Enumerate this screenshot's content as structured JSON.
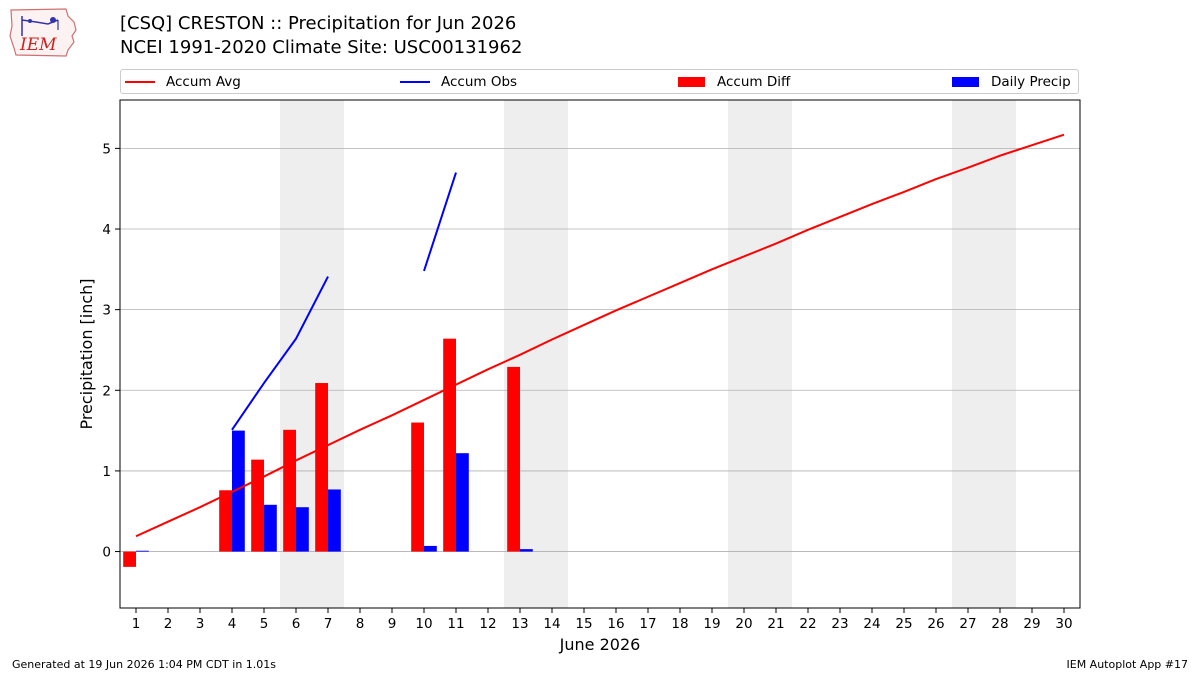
{
  "header": {
    "title_line1": "[CSQ] CRESTON :: Precipitation for Jun 2026",
    "title_line2": "NCEI 1991-2020 Climate Site: USC00131962"
  },
  "logo": {
    "text": "IEM",
    "icon": "iem-iowa-logo"
  },
  "footer": {
    "generated": "Generated at 19 Jun 2026 1:04 PM CDT in 1.01s",
    "app": "IEM Autoplot App #17"
  },
  "colors": {
    "avg": "#ff0000",
    "obs": "#0000ff",
    "diff": "#ff0000",
    "daily": "#0000ff",
    "weekend": "#eeeeee",
    "grid": "#b0b0b0"
  },
  "chart_data": {
    "type": "bar",
    "xlabel": "June 2026",
    "ylabel": "Precipitation [inch]",
    "ylim": [
      -0.7,
      5.6
    ],
    "yticks": [
      0,
      1,
      2,
      3,
      4,
      5
    ],
    "xlim": [
      0.5,
      30.5
    ],
    "grid": "horizontal",
    "legend_position": "top",
    "days": [
      1,
      2,
      3,
      4,
      5,
      6,
      7,
      8,
      9,
      10,
      11,
      12,
      13,
      14,
      15,
      16,
      17,
      18,
      19,
      20,
      21,
      22,
      23,
      24,
      25,
      26,
      27,
      28,
      29,
      30
    ],
    "weekends": [
      [
        6,
        7
      ],
      [
        13,
        14
      ],
      [
        20,
        21
      ],
      [
        27,
        28
      ]
    ],
    "legend": [
      "Accum Avg",
      "Accum Obs",
      "Accum Diff",
      "Daily Precip"
    ],
    "series": [
      {
        "name": "Accum Avg",
        "kind": "line",
        "x": [
          1,
          2,
          3,
          4,
          5,
          6,
          7,
          8,
          9,
          10,
          11,
          12,
          13,
          14,
          15,
          16,
          17,
          18,
          19,
          20,
          21,
          22,
          23,
          24,
          25,
          26,
          27,
          28,
          29,
          30
        ],
        "values": [
          0.19,
          0.37,
          0.55,
          0.74,
          0.93,
          1.13,
          1.32,
          1.51,
          1.69,
          1.88,
          2.07,
          2.26,
          2.44,
          2.63,
          2.81,
          2.99,
          3.16,
          3.33,
          3.5,
          3.66,
          3.82,
          3.99,
          4.15,
          4.31,
          4.46,
          4.62,
          4.76,
          4.91,
          5.04,
          5.17
        ]
      },
      {
        "name": "Accum Obs",
        "kind": "line",
        "segments": [
          {
            "x": [
              4,
              5,
              6,
              7
            ],
            "values": [
              1.51,
              2.09,
              2.64,
              3.41
            ]
          },
          {
            "x": [
              10,
              11
            ],
            "values": [
              3.48,
              4.7
            ]
          }
        ]
      },
      {
        "name": "Accum Diff",
        "kind": "bar",
        "x": [
          1,
          4,
          5,
          6,
          7,
          10,
          11,
          13
        ],
        "values": [
          -0.19,
          0.76,
          1.14,
          1.51,
          2.09,
          1.6,
          2.64,
          2.29
        ]
      },
      {
        "name": "Daily Precip",
        "kind": "bar",
        "x": [
          1,
          4,
          5,
          6,
          7,
          10,
          11,
          13
        ],
        "values": [
          0.01,
          1.5,
          0.58,
          0.55,
          0.77,
          0.07,
          1.22,
          0.03
        ]
      }
    ]
  }
}
